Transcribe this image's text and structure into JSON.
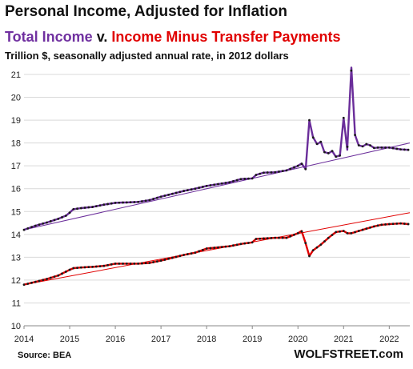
{
  "chart_data": {
    "type": "line",
    "title": "Personal Income, Adjusted for Inflation",
    "subtitle_parts": [
      "Total Income",
      "v.",
      "Income Minus Transfer Payments"
    ],
    "units": "Trillion $, seasonally adjusted annual rate, in 2012 dollars",
    "source": "Source: BEA",
    "brand": "WOLFSTREET.com",
    "xlabel": "",
    "ylabel": "",
    "xlim": [
      2014.0,
      2022.45
    ],
    "ylim": [
      10,
      21.5
    ],
    "x_ticks": [
      "2014",
      "2015",
      "2016",
      "2017",
      "2018",
      "2019",
      "2020",
      "2021",
      "2022"
    ],
    "y_ticks": [
      10,
      11,
      12,
      13,
      14,
      15,
      16,
      17,
      18,
      19,
      20,
      21
    ],
    "grid": "horizontal",
    "colors": {
      "total": "#6a2d9a",
      "minus": "#e00000",
      "marker": "#1a1a1a",
      "grid": "#d9d9d9"
    },
    "series": [
      {
        "name": "Total Income",
        "key": "total",
        "anchors": [
          [
            2014.0,
            14.2
          ],
          [
            2014.25,
            14.38
          ],
          [
            2014.5,
            14.52
          ],
          [
            2014.75,
            14.68
          ],
          [
            2014.92,
            14.82
          ],
          [
            2015.0,
            14.95
          ],
          [
            2015.08,
            15.1
          ],
          [
            2015.25,
            15.15
          ],
          [
            2015.5,
            15.2
          ],
          [
            2015.75,
            15.3
          ],
          [
            2016.0,
            15.38
          ],
          [
            2016.5,
            15.42
          ],
          [
            2016.75,
            15.5
          ],
          [
            2017.0,
            15.65
          ],
          [
            2017.5,
            15.9
          ],
          [
            2017.75,
            16.0
          ],
          [
            2018.0,
            16.12
          ],
          [
            2018.25,
            16.2
          ],
          [
            2018.5,
            16.28
          ],
          [
            2018.75,
            16.42
          ],
          [
            2019.0,
            16.45
          ],
          [
            2019.08,
            16.6
          ],
          [
            2019.25,
            16.7
          ],
          [
            2019.5,
            16.72
          ],
          [
            2019.75,
            16.8
          ],
          [
            2020.0,
            17.0
          ],
          [
            2020.08,
            17.1
          ],
          [
            2020.17,
            16.85
          ],
          [
            2020.25,
            19.0
          ],
          [
            2020.33,
            18.25
          ],
          [
            2020.42,
            17.95
          ],
          [
            2020.5,
            18.05
          ],
          [
            2020.58,
            17.6
          ],
          [
            2020.67,
            17.55
          ],
          [
            2020.75,
            17.65
          ],
          [
            2020.83,
            17.4
          ],
          [
            2020.92,
            17.45
          ],
          [
            2021.0,
            19.1
          ],
          [
            2021.08,
            17.7
          ],
          [
            2021.17,
            21.3
          ],
          [
            2021.25,
            18.35
          ],
          [
            2021.33,
            17.9
          ],
          [
            2021.42,
            17.85
          ],
          [
            2021.5,
            17.95
          ],
          [
            2021.58,
            17.9
          ],
          [
            2021.67,
            17.78
          ],
          [
            2021.75,
            17.8
          ],
          [
            2022.0,
            17.8
          ],
          [
            2022.25,
            17.72
          ],
          [
            2022.42,
            17.7
          ]
        ]
      },
      {
        "name": "Income Minus Transfer Payments",
        "key": "minus",
        "anchors": [
          [
            2014.0,
            11.8
          ],
          [
            2014.25,
            11.92
          ],
          [
            2014.5,
            12.05
          ],
          [
            2014.75,
            12.2
          ],
          [
            2015.0,
            12.45
          ],
          [
            2015.08,
            12.52
          ],
          [
            2015.25,
            12.55
          ],
          [
            2015.5,
            12.58
          ],
          [
            2015.75,
            12.62
          ],
          [
            2016.0,
            12.72
          ],
          [
            2016.5,
            12.72
          ],
          [
            2016.75,
            12.75
          ],
          [
            2017.0,
            12.85
          ],
          [
            2017.5,
            13.1
          ],
          [
            2017.75,
            13.2
          ],
          [
            2018.0,
            13.38
          ],
          [
            2018.5,
            13.48
          ],
          [
            2018.75,
            13.58
          ],
          [
            2019.0,
            13.65
          ],
          [
            2019.08,
            13.8
          ],
          [
            2019.25,
            13.82
          ],
          [
            2019.5,
            13.85
          ],
          [
            2019.75,
            13.85
          ],
          [
            2020.0,
            14.05
          ],
          [
            2020.08,
            14.15
          ],
          [
            2020.17,
            13.6
          ],
          [
            2020.25,
            13.05
          ],
          [
            2020.33,
            13.3
          ],
          [
            2020.5,
            13.55
          ],
          [
            2020.67,
            13.85
          ],
          [
            2020.83,
            14.1
          ],
          [
            2021.0,
            14.15
          ],
          [
            2021.08,
            14.05
          ],
          [
            2021.17,
            14.05
          ],
          [
            2021.33,
            14.15
          ],
          [
            2021.5,
            14.25
          ],
          [
            2021.67,
            14.35
          ],
          [
            2021.83,
            14.42
          ],
          [
            2022.0,
            14.45
          ],
          [
            2022.25,
            14.48
          ],
          [
            2022.42,
            14.45
          ]
        ]
      }
    ],
    "trendlines": [
      {
        "key": "total",
        "from": [
          2014.0,
          14.2
        ],
        "to": [
          2022.45,
          18.0
        ]
      },
      {
        "key": "minus",
        "from": [
          2014.0,
          11.8
        ],
        "to": [
          2022.45,
          14.95
        ]
      }
    ]
  }
}
